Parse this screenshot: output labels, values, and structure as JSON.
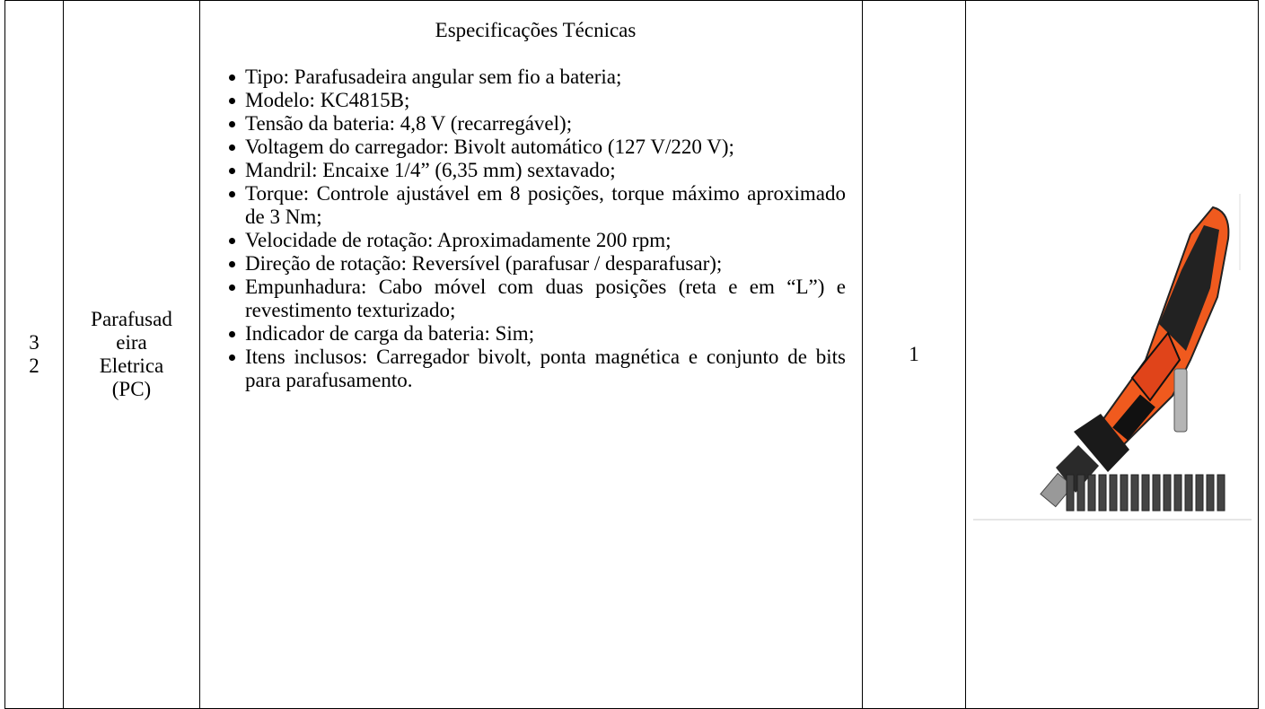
{
  "table": {
    "rows": [
      {
        "item": "32",
        "name": "Parafusadeira Eletrica (PC)",
        "spec_title": "Especificações Técnicas",
        "specs": [
          "Tipo: Parafusadeira angular sem fio a bateria;",
          "Modelo: KC4815B;",
          "Tensão da bateria: 4,8 V (recarregável);",
          "Voltagem do carregador: Bivolt automático (127 V/220 V);",
          "Mandril: Encaixe 1/4” (6,35 mm) sextavado;",
          "Torque: Controle ajustável em 8 posições, torque máximo aproximado de 3 Nm;",
          "Velocidade de rotação: Aproximadamente 200 rpm;",
          "Direção de rotação: Reversível (parafusar / desparafusar);",
          "Empunhadura: Cabo móvel com duas posições (reta e em “L”) e revestimento texturizado;",
          "Indicador de carga da bateria: Sim;",
          "Itens inclusos: Carregador bivolt, ponta magnética e conjunto de bits para parafusamento."
        ],
        "quantity": "1"
      }
    ]
  }
}
